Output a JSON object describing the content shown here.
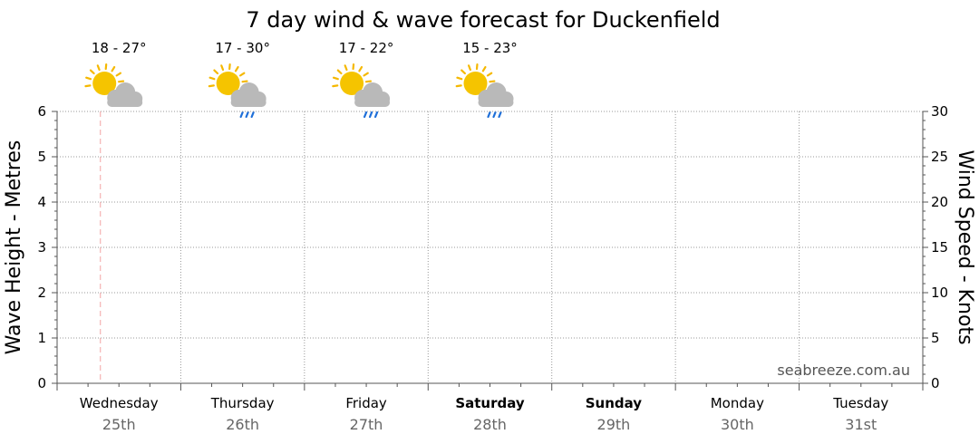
{
  "chart_data": {
    "type": "line",
    "title": "7 day wind & wave forecast for Duckenfield",
    "ylabel_left": "Wave Height - Metres",
    "ylabel_right": "Wind Speed - Knots",
    "ylim_left": [
      0,
      6
    ],
    "ylim_right": [
      0,
      30
    ],
    "yticks_left": [
      0,
      1,
      2,
      3,
      4,
      5,
      6
    ],
    "yticks_right": [
      0,
      5,
      10,
      15,
      20,
      25,
      30
    ],
    "grid": true,
    "days": [
      {
        "name": "Wednesday",
        "date": "25th",
        "weekend": false
      },
      {
        "name": "Thursday",
        "date": "26th",
        "weekend": false
      },
      {
        "name": "Friday",
        "date": "27th",
        "weekend": false
      },
      {
        "name": "Saturday",
        "date": "28th",
        "weekend": true
      },
      {
        "name": "Sunday",
        "date": "29th",
        "weekend": true
      },
      {
        "name": "Monday",
        "date": "30th",
        "weekend": false
      },
      {
        "name": "Tuesday",
        "date": "31st",
        "weekend": false
      }
    ],
    "forecast": [
      {
        "temp": "18 - 27°",
        "icon": "partly-cloudy-icon"
      },
      {
        "temp": "17 - 30°",
        "icon": "partly-cloudy-rain-icon"
      },
      {
        "temp": "17 - 22°",
        "icon": "partly-cloudy-rain-icon"
      },
      {
        "temp": "15 - 23°",
        "icon": "partly-cloudy-rain-icon"
      }
    ],
    "series": [],
    "now_marker_day_fraction": 0.35,
    "watermark": "seabreeze.com.au"
  },
  "colors": {
    "grid": "#999999",
    "axis": "#555555",
    "now_marker": "#f4a3a3",
    "sun": "#f5c400",
    "sun_rays": "#f5b800",
    "cloud": "#b9b9b9",
    "rain": "#1e6fd9"
  }
}
